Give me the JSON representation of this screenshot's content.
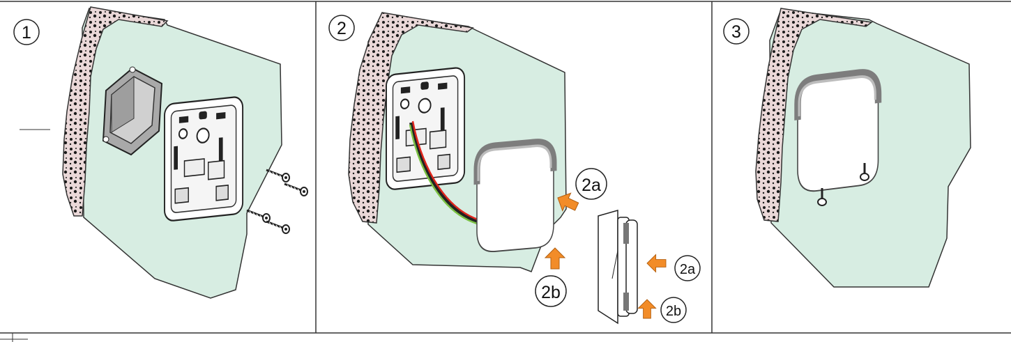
{
  "steps": [
    {
      "number": "1"
    },
    {
      "number": "2",
      "callouts": {
        "a_main": "2a",
        "b_main": "2b",
        "a_side": "2a",
        "b_side": "2b"
      }
    },
    {
      "number": "3"
    }
  ],
  "colors": {
    "wall": "#d7ede2",
    "brick": "#ead8d8",
    "arrow": "#f28c28",
    "frame": "#333333",
    "device": "#ffffff",
    "device_edge": "#8e8e8e"
  },
  "icons": [
    "wall-section",
    "flush-mount-box",
    "mounting-plate",
    "screw",
    "wire",
    "thermostat-device",
    "push-arrow"
  ]
}
